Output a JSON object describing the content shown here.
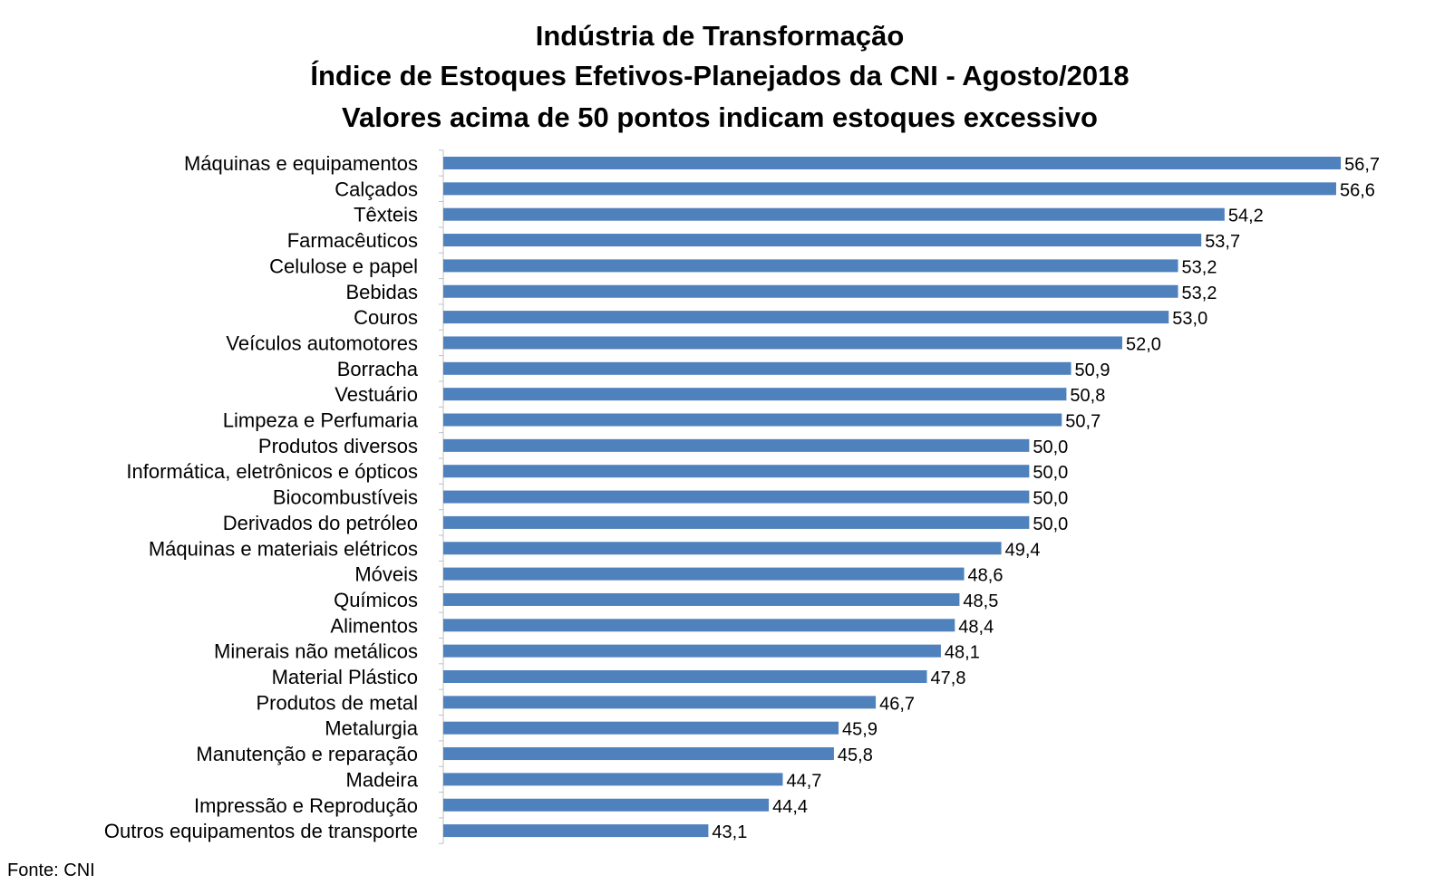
{
  "chart_data": {
    "type": "bar",
    "orientation": "horizontal",
    "title": [
      "Indústria de Transformação",
      "Índice de Estoques Efetivos-Planejados da CNI - Agosto/2018",
      "Valores acima de 50 pontos indicam estoques excessivo"
    ],
    "xlabel": "",
    "ylabel": "",
    "xlim": [
      43.1,
      56.7
    ],
    "grid": false,
    "legend": "none",
    "bar_color": "#4F81BD",
    "categories": [
      "Máquinas e equipamentos",
      "Calçados",
      "Têxteis",
      "Farmacêuticos",
      "Celulose e papel",
      "Bebidas",
      "Couros",
      "Veículos automotores",
      "Borracha",
      "Vestuário",
      "Limpeza e Perfumaria",
      "Produtos diversos",
      "Informática, eletrônicos e ópticos",
      "Biocombustíveis",
      "Derivados do petróleo",
      "Máquinas e materiais elétricos",
      "Móveis",
      "Químicos",
      "Alimentos",
      "Minerais não metálicos",
      "Material Plástico",
      "Produtos de metal",
      "Metalurgia",
      "Manutenção e reparação",
      "Madeira",
      "Impressão e Reprodução",
      "Outros equipamentos de transporte"
    ],
    "values": [
      56.7,
      56.6,
      54.2,
      53.7,
      53.2,
      53.2,
      53.0,
      52.0,
      50.9,
      50.8,
      50.7,
      50.0,
      50.0,
      50.0,
      50.0,
      49.4,
      48.6,
      48.5,
      48.4,
      48.1,
      47.8,
      46.7,
      45.9,
      45.8,
      44.7,
      44.4,
      43.1
    ],
    "value_labels": [
      "56,7",
      "56,6",
      "54,2",
      "53,7",
      "53,2",
      "53,2",
      "53,0",
      "52,0",
      "50,9",
      "50,8",
      "50,7",
      "50,0",
      "50,0",
      "50,0",
      "50,0",
      "49,4",
      "48,6",
      "48,5",
      "48,4",
      "48,1",
      "47,8",
      "46,7",
      "45,9",
      "45,8",
      "44,7",
      "44,4",
      "43,1"
    ]
  },
  "source_note": "Fonte: CNI"
}
